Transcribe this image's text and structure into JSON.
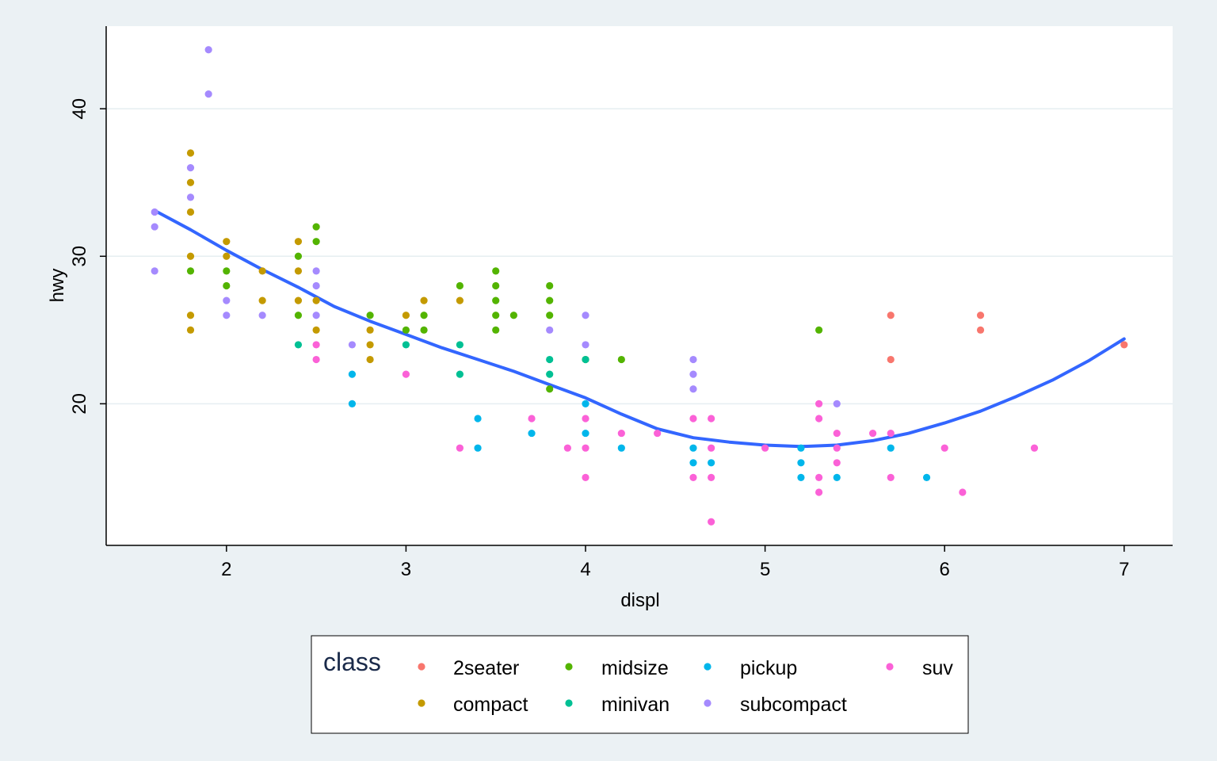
{
  "chart_data": {
    "type": "scatter",
    "title": "",
    "xlabel": "displ",
    "ylabel": "hwy",
    "xlim": [
      1.33,
      7.27
    ],
    "ylim": [
      10.4,
      45.6
    ],
    "xticks": [
      2,
      3,
      4,
      5,
      6,
      7
    ],
    "yticks": [
      20,
      30,
      40
    ],
    "xtick_labels": [
      "2",
      "3",
      "4",
      "5",
      "6",
      "7"
    ],
    "ytick_labels": [
      "20",
      "30",
      "40"
    ],
    "grid": "horizontal",
    "legend": {
      "title": "class",
      "placement": "bottom",
      "entries": [
        {
          "name": "2seater",
          "color": "#f8766d"
        },
        {
          "name": "midsize",
          "color": "#53b400"
        },
        {
          "name": "pickup",
          "color": "#00b6eb"
        },
        {
          "name": "suv",
          "color": "#fb61d7"
        },
        {
          "name": "compact",
          "color": "#c49a00"
        },
        {
          "name": "minivan",
          "color": "#00c094"
        },
        {
          "name": "subcompact",
          "color": "#a58afe"
        }
      ]
    },
    "series": [
      {
        "name": "2seater",
        "color": "#f8766d",
        "points": [
          [
            5.7,
            26
          ],
          [
            5.7,
            23
          ],
          [
            6.2,
            26
          ],
          [
            6.2,
            25
          ],
          [
            7.0,
            24
          ]
        ]
      },
      {
        "name": "compact",
        "color": "#c49a00",
        "points": [
          [
            1.8,
            37
          ],
          [
            1.8,
            35
          ],
          [
            1.8,
            33
          ],
          [
            1.8,
            30
          ],
          [
            1.8,
            26
          ],
          [
            1.8,
            25
          ],
          [
            2.0,
            31
          ],
          [
            2.0,
            30
          ],
          [
            2.2,
            29
          ],
          [
            2.2,
            27
          ],
          [
            2.4,
            31
          ],
          [
            2.4,
            29
          ],
          [
            2.4,
            27
          ],
          [
            2.5,
            27
          ],
          [
            2.5,
            25
          ],
          [
            2.8,
            25
          ],
          [
            2.8,
            24
          ],
          [
            2.8,
            23
          ],
          [
            3.0,
            26
          ],
          [
            3.1,
            27
          ],
          [
            3.3,
            27
          ]
        ]
      },
      {
        "name": "midsize",
        "color": "#53b400",
        "points": [
          [
            1.8,
            29
          ],
          [
            2.0,
            29
          ],
          [
            2.0,
            28
          ],
          [
            2.4,
            30
          ],
          [
            2.4,
            26
          ],
          [
            2.5,
            32
          ],
          [
            2.5,
            31
          ],
          [
            2.8,
            26
          ],
          [
            3.0,
            25
          ],
          [
            3.1,
            26
          ],
          [
            3.1,
            25
          ],
          [
            3.3,
            28
          ],
          [
            3.5,
            29
          ],
          [
            3.5,
            28
          ],
          [
            3.5,
            27
          ],
          [
            3.5,
            26
          ],
          [
            3.5,
            25
          ],
          [
            3.6,
            26
          ],
          [
            3.8,
            28
          ],
          [
            3.8,
            27
          ],
          [
            3.8,
            26
          ],
          [
            3.8,
            21
          ],
          [
            4.0,
            23
          ],
          [
            4.2,
            23
          ],
          [
            5.3,
            25
          ]
        ]
      },
      {
        "name": "minivan",
        "color": "#00c094",
        "points": [
          [
            2.4,
            24
          ],
          [
            3.0,
            24
          ],
          [
            3.3,
            24
          ],
          [
            3.3,
            22
          ],
          [
            3.8,
            23
          ],
          [
            3.8,
            22
          ],
          [
            4.0,
            23
          ]
        ]
      },
      {
        "name": "pickup",
        "color": "#00b6eb",
        "points": [
          [
            2.7,
            22
          ],
          [
            2.7,
            20
          ],
          [
            3.4,
            19
          ],
          [
            3.4,
            17
          ],
          [
            3.7,
            18
          ],
          [
            4.0,
            20
          ],
          [
            4.0,
            18
          ],
          [
            4.2,
            17
          ],
          [
            4.6,
            17
          ],
          [
            4.6,
            16
          ],
          [
            4.7,
            16
          ],
          [
            5.2,
            17
          ],
          [
            5.2,
            16
          ],
          [
            5.2,
            15
          ],
          [
            5.4,
            15
          ],
          [
            5.7,
            17
          ],
          [
            5.9,
            15
          ]
        ]
      },
      {
        "name": "subcompact",
        "color": "#a58afe",
        "points": [
          [
            1.6,
            33
          ],
          [
            1.6,
            32
          ],
          [
            1.6,
            29
          ],
          [
            1.8,
            36
          ],
          [
            1.8,
            34
          ],
          [
            1.9,
            44
          ],
          [
            1.9,
            41
          ],
          [
            2.0,
            27
          ],
          [
            2.0,
            26
          ],
          [
            2.2,
            26
          ],
          [
            2.5,
            29
          ],
          [
            2.5,
            28
          ],
          [
            2.5,
            26
          ],
          [
            2.7,
            24
          ],
          [
            3.8,
            25
          ],
          [
            4.0,
            26
          ],
          [
            4.0,
            24
          ],
          [
            4.6,
            23
          ],
          [
            4.6,
            22
          ],
          [
            4.6,
            21
          ],
          [
            5.4,
            20
          ]
        ]
      },
      {
        "name": "suv",
        "color": "#fb61d7",
        "points": [
          [
            2.5,
            24
          ],
          [
            2.5,
            23
          ],
          [
            3.0,
            22
          ],
          [
            3.3,
            17
          ],
          [
            3.7,
            19
          ],
          [
            3.9,
            17
          ],
          [
            4.0,
            19
          ],
          [
            4.0,
            17
          ],
          [
            4.0,
            15
          ],
          [
            4.2,
            18
          ],
          [
            4.4,
            18
          ],
          [
            4.6,
            19
          ],
          [
            4.6,
            15
          ],
          [
            4.7,
            19
          ],
          [
            4.7,
            17
          ],
          [
            4.7,
            15
          ],
          [
            4.7,
            12
          ],
          [
            5.0,
            17
          ],
          [
            5.3,
            20
          ],
          [
            5.3,
            19
          ],
          [
            5.3,
            15
          ],
          [
            5.3,
            14
          ],
          [
            5.4,
            18
          ],
          [
            5.4,
            17
          ],
          [
            5.4,
            16
          ],
          [
            5.6,
            18
          ],
          [
            5.7,
            18
          ],
          [
            5.7,
            15
          ],
          [
            6.0,
            17
          ],
          [
            6.1,
            14
          ],
          [
            6.5,
            17
          ]
        ]
      }
    ],
    "smooth": {
      "color": "#3366ff",
      "points": [
        [
          1.6,
          33.1
        ],
        [
          1.8,
          31.8
        ],
        [
          2.0,
          30.4
        ],
        [
          2.2,
          29.1
        ],
        [
          2.4,
          27.9
        ],
        [
          2.6,
          26.6
        ],
        [
          2.8,
          25.6
        ],
        [
          3.0,
          24.7
        ],
        [
          3.2,
          23.8
        ],
        [
          3.4,
          23.0
        ],
        [
          3.6,
          22.2
        ],
        [
          3.8,
          21.3
        ],
        [
          4.0,
          20.4
        ],
        [
          4.2,
          19.3
        ],
        [
          4.4,
          18.3
        ],
        [
          4.6,
          17.7
        ],
        [
          4.8,
          17.4
        ],
        [
          5.0,
          17.2
        ],
        [
          5.2,
          17.1
        ],
        [
          5.4,
          17.2
        ],
        [
          5.6,
          17.5
        ],
        [
          5.8,
          18.0
        ],
        [
          6.0,
          18.7
        ],
        [
          6.2,
          19.5
        ],
        [
          6.4,
          20.5
        ],
        [
          6.6,
          21.6
        ],
        [
          6.8,
          22.9
        ],
        [
          7.0,
          24.4
        ]
      ]
    }
  }
}
